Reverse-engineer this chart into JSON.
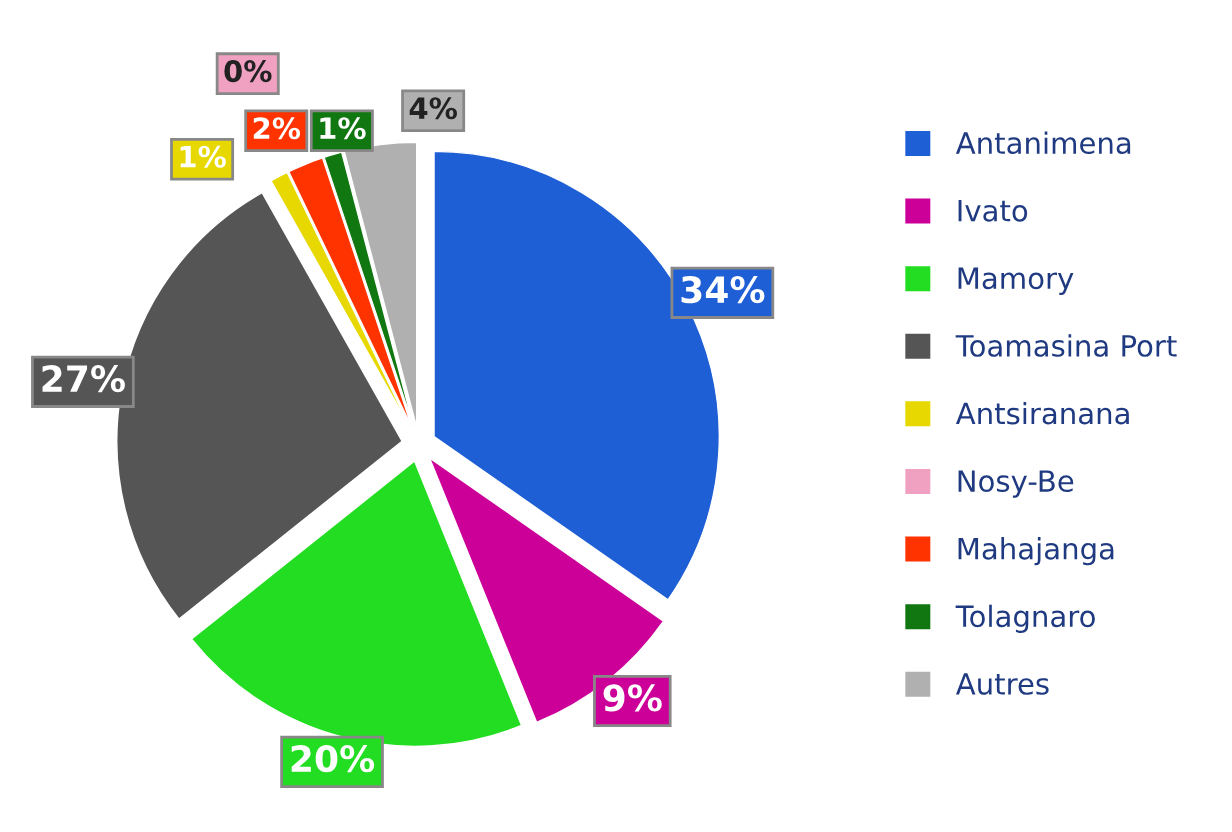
{
  "chart_data": {
    "type": "pie",
    "categories": [
      "Antanimena",
      "Ivato",
      "Mamory",
      "Toamasina Port",
      "Antsiranana",
      "Nosy-Be",
      "Mahajanga",
      "Tolagnaro",
      "Autres"
    ],
    "values": [
      34,
      9,
      20,
      27,
      1,
      0,
      2,
      1,
      4
    ],
    "value_labels": [
      "34%",
      "9%",
      "20%",
      "27%",
      "1%",
      "0%",
      "2%",
      "1%",
      "4%"
    ],
    "colors": [
      "#1f5fd6",
      "#cc0099",
      "#22dd22",
      "#555555",
      "#e6d800",
      "#f0a0c0",
      "#ff3300",
      "#117711",
      "#b0b0b0"
    ],
    "legend": "right"
  }
}
